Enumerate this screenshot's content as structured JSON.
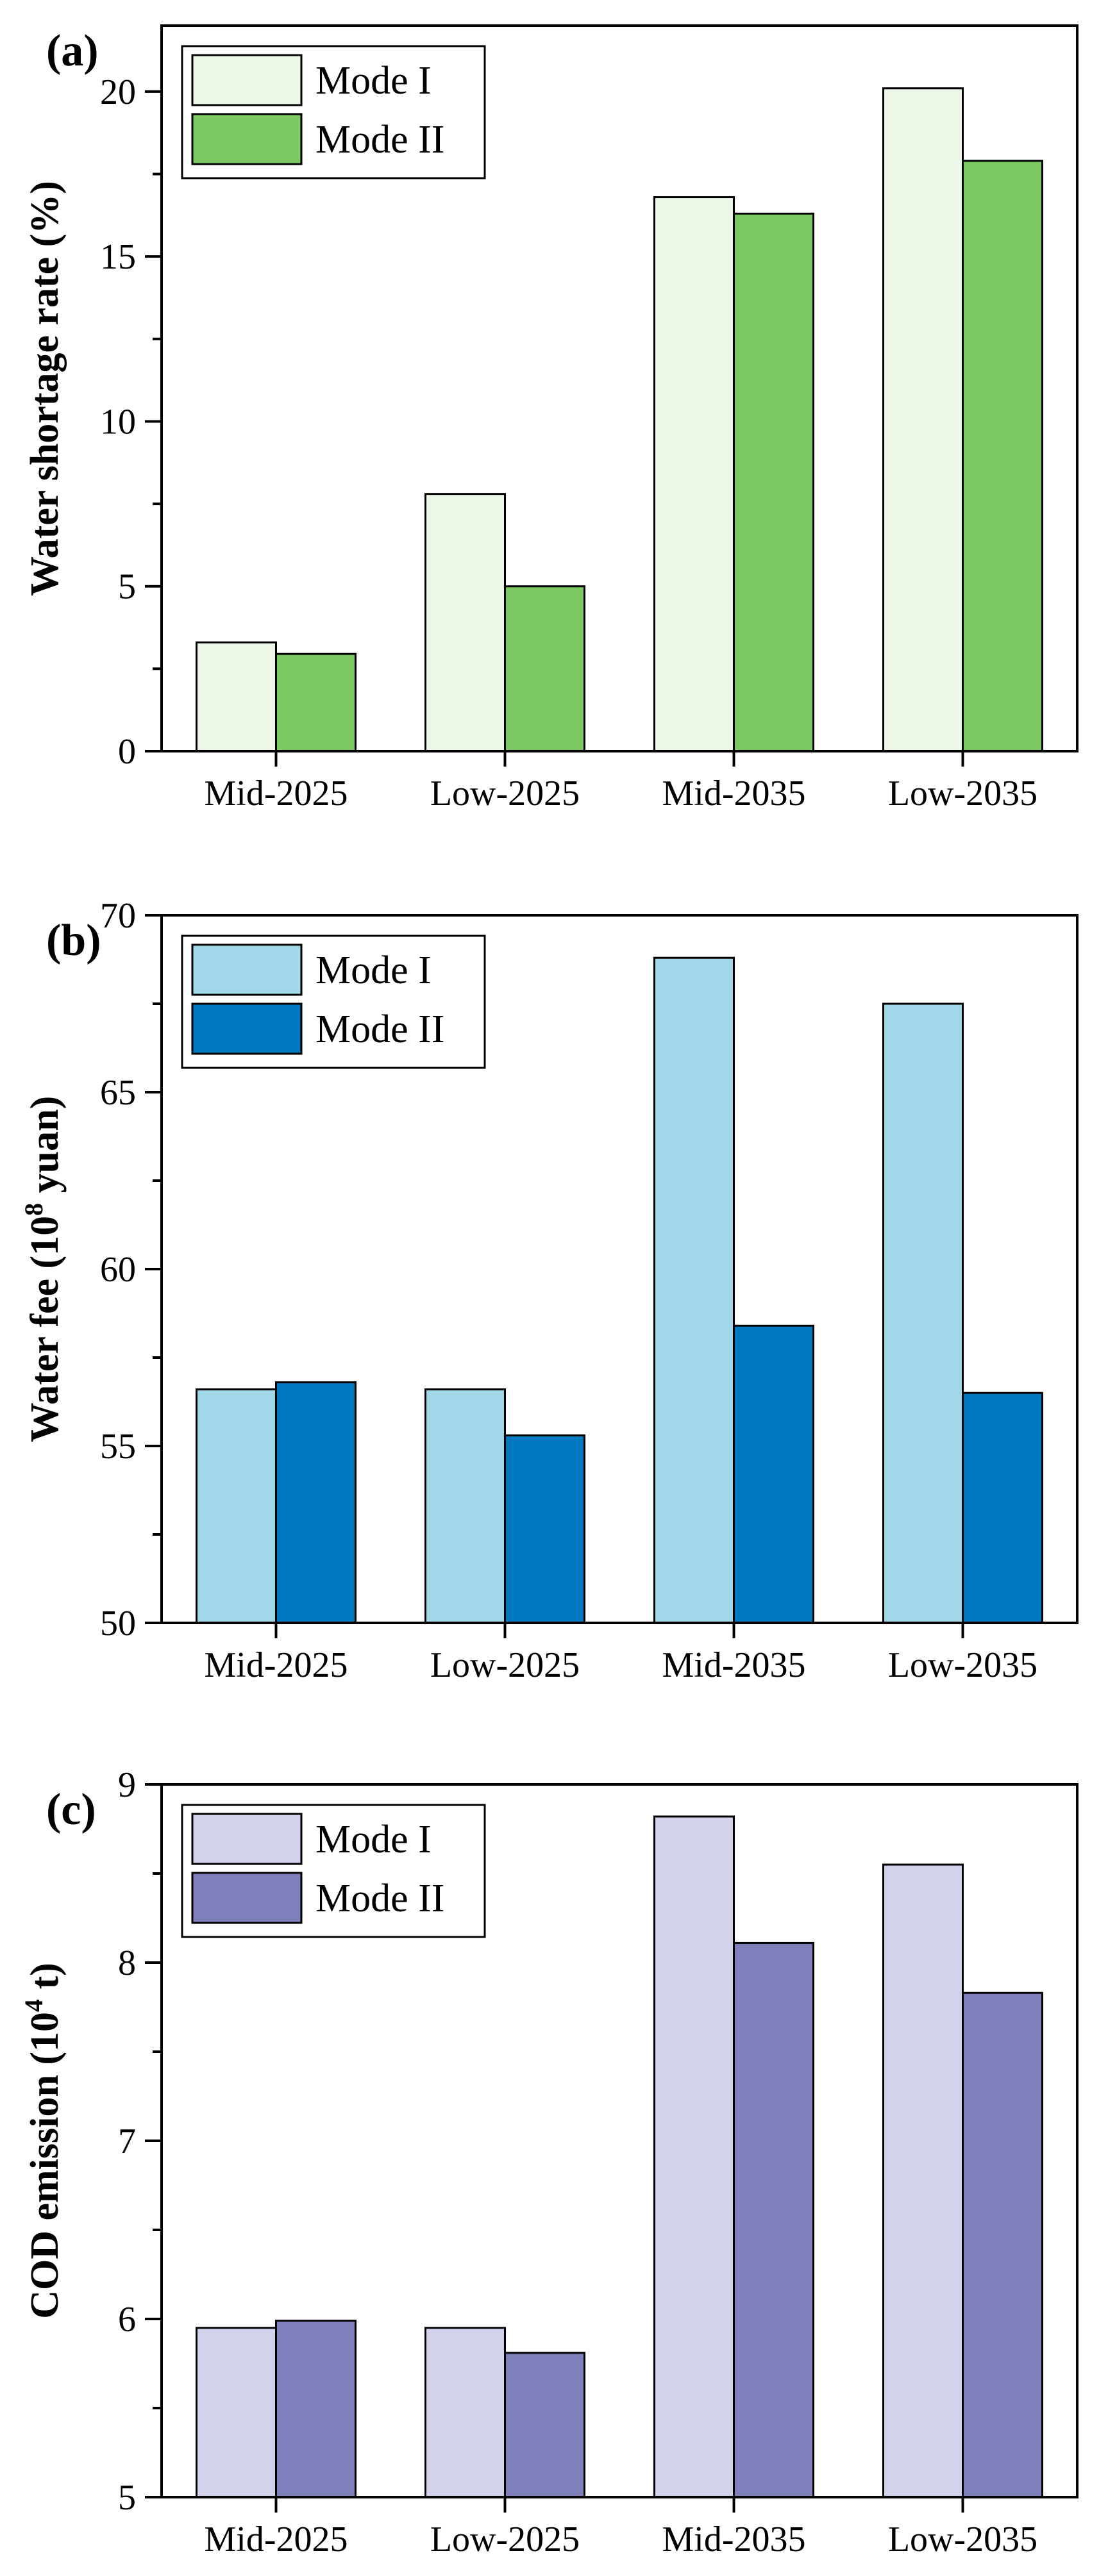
{
  "chart_data": [
    {
      "type": "bar",
      "panel_label": "(a)",
      "categories": [
        "Mid-2025",
        "Low-2025",
        "Mid-2035",
        "Low-2035"
      ],
      "series": [
        {
          "name": "Mode I",
          "values": [
            3.3,
            7.8,
            16.8,
            20.1
          ],
          "color": "#edf7e8"
        },
        {
          "name": "Mode II",
          "values": [
            2.95,
            5.0,
            16.3,
            17.9
          ],
          "color": "#7cc862"
        }
      ],
      "title": "",
      "xlabel": "",
      "ylabel": "Water shortage rate (%)",
      "ylim": [
        0,
        22
      ],
      "yticks": [
        0,
        5,
        10,
        15,
        20
      ],
      "ytick_labels": [
        "0",
        "5",
        "10",
        "15",
        "20"
      ],
      "legend_position": "top-left",
      "grid": false
    },
    {
      "type": "bar",
      "panel_label": "(b)",
      "categories": [
        "Mid-2025",
        "Low-2025",
        "Mid-2035",
        "Low-2035"
      ],
      "series": [
        {
          "name": "Mode I",
          "values": [
            56.6,
            56.6,
            68.8,
            67.5
          ],
          "color": "#a0d8ea"
        },
        {
          "name": "Mode II",
          "values": [
            56.8,
            55.3,
            58.4,
            56.5
          ],
          "color": "#0079c1"
        }
      ],
      "title": "",
      "xlabel": "",
      "ylabel": "Water fee (10",
      "ylabel_sup": "8",
      "ylabel_tail": " yuan)",
      "ylim": [
        50,
        70
      ],
      "yticks": [
        50,
        55,
        60,
        65,
        70
      ],
      "ytick_labels": [
        "50",
        "55",
        "60",
        "65",
        "70"
      ],
      "legend_position": "top-left",
      "grid": false
    },
    {
      "type": "bar",
      "panel_label": "(c)",
      "categories": [
        "Mid-2025",
        "Low-2025",
        "Mid-2035",
        "Low-2035"
      ],
      "series": [
        {
          "name": "Mode I",
          "values": [
            5.95,
            5.95,
            8.82,
            8.55
          ],
          "color": "#d2d2ec"
        },
        {
          "name": "Mode II",
          "values": [
            5.99,
            5.81,
            8.11,
            7.83
          ],
          "color": "#7f7fbb"
        }
      ],
      "title": "",
      "xlabel": "",
      "ylabel": "COD emission (10",
      "ylabel_sup": "4",
      "ylabel_tail": " t)",
      "ylim": [
        5,
        9
      ],
      "yticks": [
        5,
        6,
        7,
        8,
        9
      ],
      "ytick_labels": [
        "5",
        "6",
        "7",
        "8",
        "9"
      ],
      "legend_position": "top-left",
      "grid": false
    }
  ]
}
